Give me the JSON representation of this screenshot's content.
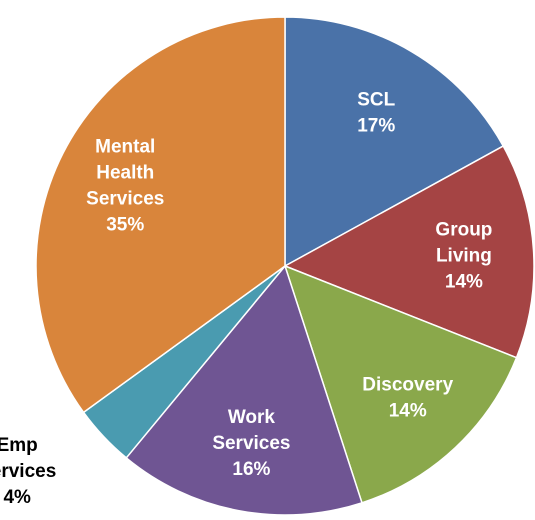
{
  "chart_data": {
    "type": "pie",
    "categories": [
      "SCL",
      "Group Living",
      "Discovery",
      "Work Services",
      "Emp Services",
      "Mental Health Services"
    ],
    "values": [
      17,
      14,
      14,
      16,
      4,
      35
    ],
    "value_labels": [
      "17%",
      "14%",
      "14%",
      "16%",
      "4%",
      "35%"
    ],
    "colors": [
      "#4a72a8",
      "#a54444",
      "#8aa84b",
      "#6f5593",
      "#4a9bb0",
      "#d9853b"
    ]
  }
}
